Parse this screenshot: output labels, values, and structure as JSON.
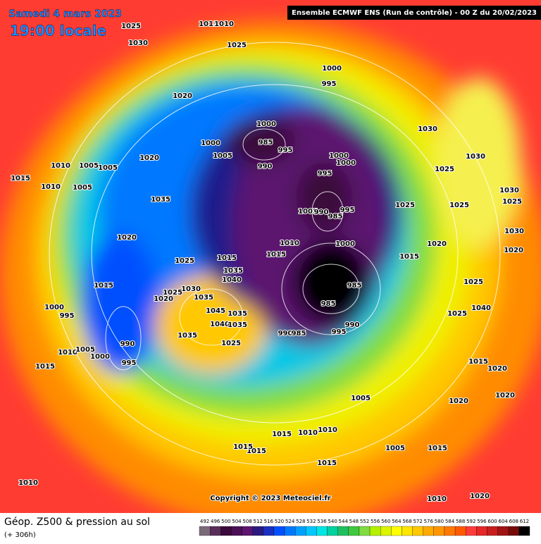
{
  "header": {
    "date": "Samedi 4 mars 2023",
    "time": "19:00 locale",
    "run": "Ensemble ECMWF ENS  (Run de contrôle)  -  00 Z du 20/02/2023"
  },
  "footer": {
    "product": "Géop. Z500 & pression au sol",
    "lead_time": "(+ 306h)",
    "copyright": "Copyright © 2023 Meteociel.fr"
  },
  "isobar_labels": [
    1025,
    1030,
    1015,
    1010,
    1025,
    1000,
    995,
    1020,
    1000,
    985,
    995,
    990,
    1000,
    1005,
    1020,
    1010,
    1005,
    1005,
    1015,
    1010,
    1005,
    1000,
    1000,
    995,
    1030,
    1030,
    1025,
    1035,
    1005,
    990,
    995,
    985,
    1025,
    1025,
    1020,
    1010,
    1000,
    1015,
    1025,
    1015,
    1035,
    1040,
    1015,
    1020,
    1015,
    1030,
    1025,
    1020,
    1035,
    985,
    985,
    1000,
    995,
    1045,
    1035,
    1040,
    1035,
    990,
    985,
    995,
    990,
    1035,
    1025,
    990,
    1010,
    1005,
    1000,
    995,
    1015,
    1005,
    1015,
    1010,
    1010,
    1015,
    1015,
    1005,
    1015,
    1015,
    1010,
    1010,
    1020,
    1020,
    1020,
    1015,
    1020,
    1025,
    1040,
    1025,
    1030,
    1025,
    1030,
    1020
  ],
  "colorbar_ticks": [
    492,
    496,
    500,
    504,
    508,
    512,
    516,
    520,
    524,
    528,
    532,
    536,
    540,
    544,
    548,
    552,
    556,
    560,
    564,
    568,
    572,
    576,
    580,
    584,
    588,
    592,
    596,
    600,
    604,
    608,
    612
  ]
}
